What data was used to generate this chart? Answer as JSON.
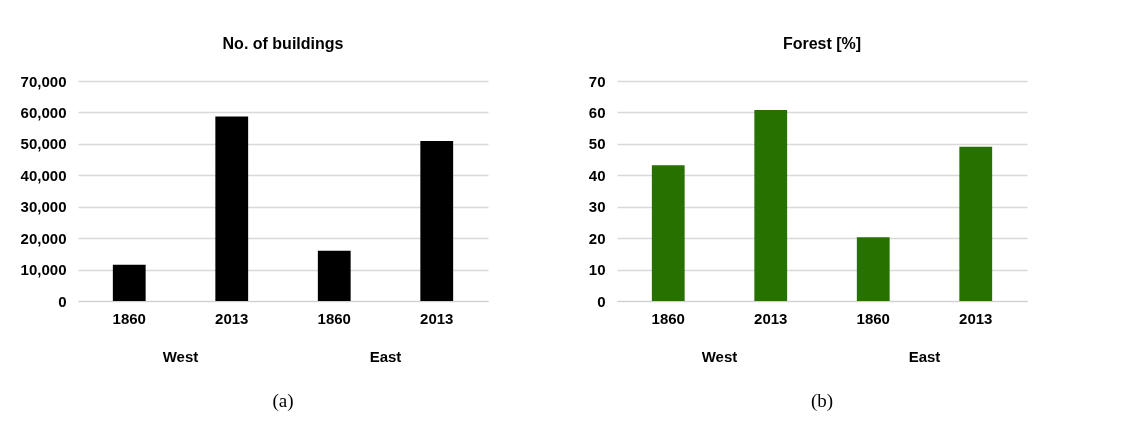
{
  "chart_data": [
    {
      "type": "bar",
      "title": "No. of buildings",
      "categories": [
        "1860",
        "2013",
        "1860",
        "2013"
      ],
      "values": [
        11500,
        58700,
        16000,
        50900
      ],
      "color": "#000000",
      "ylim": [
        0,
        70000
      ],
      "yticks": [
        0,
        {
          "value": 10000,
          "label": "10,000"
        },
        {
          "value": 20000,
          "label": "20,000"
        },
        {
          "value": 30000,
          "label": "30,000"
        },
        {
          "value": 40000,
          "label": "40,000"
        },
        {
          "value": 50000,
          "label": "50,000"
        },
        {
          "value": 60000,
          "label": "60,000"
        },
        {
          "value": 70000,
          "label": "70,000"
        }
      ],
      "grid": "y",
      "annotations": [
        "West",
        "East",
        "(a)"
      ]
    },
    {
      "type": "bar",
      "title": "Forest [%]",
      "categories": [
        "1860",
        "2013",
        "1860",
        "2013"
      ],
      "values": [
        43.2,
        60.8,
        20.3,
        49.1
      ],
      "color": "#277100",
      "ylim": [
        0,
        70
      ],
      "yticks": [
        0,
        10,
        20,
        30,
        40,
        50,
        60,
        70
      ],
      "grid": "y",
      "annotations": [
        "West",
        "East",
        "(b)"
      ]
    }
  ]
}
